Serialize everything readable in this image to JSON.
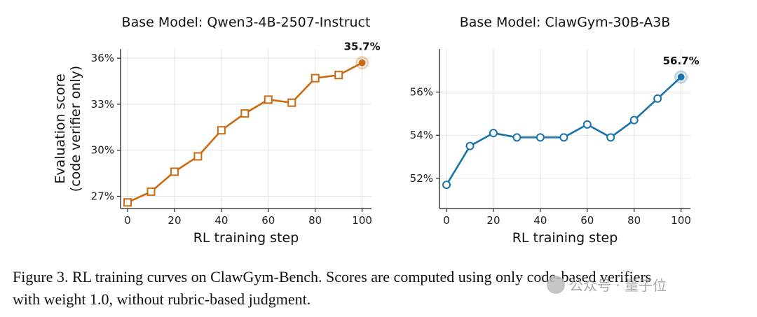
{
  "chart_data": [
    {
      "type": "line",
      "title": "Base Model: Qwen3-4B-2507-Instruct",
      "xlabel": "RL training step",
      "ylabel": "Evaluation score\n(code verifier only)",
      "x": [
        0,
        10,
        20,
        30,
        40,
        50,
        60,
        70,
        80,
        90,
        100
      ],
      "series": [
        {
          "values": [
            26.6,
            27.3,
            28.6,
            29.6,
            31.3,
            32.4,
            33.3,
            33.1,
            34.7,
            34.9,
            35.7
          ],
          "color": "#cc6a12",
          "marker": "square"
        }
      ],
      "xticks": [
        0,
        20,
        40,
        60,
        80,
        100
      ],
      "yticks": [
        27,
        30,
        33,
        36
      ],
      "ytick_labels": [
        "27%",
        "30%",
        "33%",
        "36%"
      ],
      "xlim": [
        -3,
        104
      ],
      "ylim": [
        26.2,
        36.6
      ],
      "final_label": "35.7%",
      "grid": true
    },
    {
      "type": "line",
      "title": "Base Model: ClawGym-30B-A3B",
      "xlabel": "RL training step",
      "ylabel": "",
      "x": [
        0,
        10,
        20,
        30,
        40,
        50,
        60,
        70,
        80,
        90,
        100
      ],
      "series": [
        {
          "values": [
            51.7,
            53.5,
            54.1,
            53.9,
            53.9,
            53.9,
            54.5,
            53.9,
            54.7,
            55.7,
            56.7
          ],
          "color": "#1a73a8",
          "marker": "circle"
        }
      ],
      "xticks": [
        0,
        20,
        40,
        60,
        80,
        100
      ],
      "yticks": [
        52,
        54,
        56
      ],
      "ytick_labels": [
        "52%",
        "54%",
        "56%"
      ],
      "xlim": [
        -3,
        104
      ],
      "ylim": [
        50.6,
        58.0
      ],
      "final_label": "56.7%",
      "grid": true
    }
  ],
  "caption": {
    "line1": "Figure 3. RL training curves on ClawGym-Bench. Scores are computed using only code-based verifiers",
    "line2": "with weight 1.0, without rubric-based judgment."
  },
  "watermark": {
    "text": "公众号 · 量子位",
    "icon": "wechat-icon"
  }
}
